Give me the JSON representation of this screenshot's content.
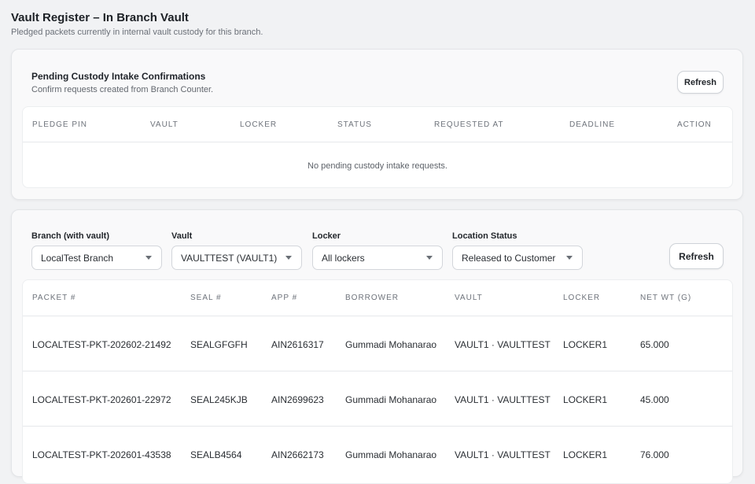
{
  "page": {
    "title": "Vault Register – In Branch Vault",
    "subtitle": "Pledged packets currently in internal vault custody for this branch."
  },
  "pending": {
    "title": "Pending Custody Intake Confirmations",
    "subtitle": "Confirm requests created from Branch Counter.",
    "refresh_label": "Refresh",
    "columns": [
      "PLEDGE PIN",
      "VAULT",
      "LOCKER",
      "STATUS",
      "REQUESTED AT",
      "DEADLINE",
      "ACTION"
    ],
    "empty_text": "No pending custody intake requests."
  },
  "filters": {
    "branch": {
      "label": "Branch (with vault)",
      "value": "LocalTest Branch"
    },
    "vault": {
      "label": "Vault",
      "value": "VAULTTEST (VAULT1)"
    },
    "locker": {
      "label": "Locker",
      "value": "All lockers"
    },
    "status": {
      "label": "Location Status",
      "value": "Released to Customer"
    },
    "refresh_label": "Refresh"
  },
  "register": {
    "columns": [
      "PACKET #",
      "SEAL #",
      "APP #",
      "BORROWER",
      "VAULT",
      "LOCKER",
      "NET WT (G)"
    ],
    "rows": [
      [
        "LOCALTEST-PKT-202602-21492",
        "SEALGFGFH",
        "AIN2616317",
        "Gummadi Mohanarao",
        "VAULT1 · VAULTTEST",
        "LOCKER1",
        "65.000"
      ],
      [
        "LOCALTEST-PKT-202601-22972",
        "SEAL245KJB",
        "AIN2699623",
        "Gummadi Mohanarao",
        "VAULT1 · VAULTTEST",
        "LOCKER1",
        "45.000"
      ],
      [
        "LOCALTEST-PKT-202601-43538",
        "SEALB4564",
        "AIN2662173",
        "Gummadi Mohanarao",
        "VAULT1 · VAULTTEST",
        "LOCKER1",
        "76.000"
      ]
    ]
  }
}
